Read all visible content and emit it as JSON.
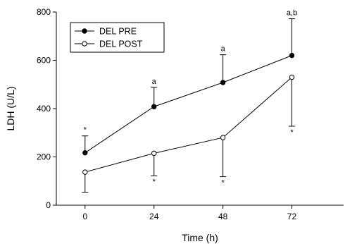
{
  "chart_data": {
    "type": "line",
    "xlabel": "Time (h)",
    "ylabel": "LDH (U/L)",
    "xlim": [
      -10,
      90
    ],
    "ylim": [
      0,
      800
    ],
    "x_ticks": [
      0,
      24,
      48,
      72
    ],
    "y_ticks": [
      0,
      200,
      400,
      600,
      800
    ],
    "grid": false,
    "legend_position": "top-left",
    "series": [
      {
        "name": "DEL PRE",
        "marker": "filled-circle",
        "x": [
          0,
          24,
          48,
          72
        ],
        "y": [
          217,
          408,
          508,
          620
        ],
        "error_dir": "up",
        "error": [
          70,
          80,
          115,
          152
        ],
        "annotations": [
          "*",
          "a",
          "a",
          "a,b"
        ]
      },
      {
        "name": "DEL POST",
        "marker": "open-circle",
        "x": [
          0,
          24,
          48,
          72
        ],
        "y": [
          137,
          215,
          280,
          530
        ],
        "error_dir": "down",
        "error": [
          83,
          93,
          162,
          203
        ],
        "annotations": [
          "",
          "*",
          "*",
          "*"
        ]
      }
    ],
    "colors": {
      "line": "#000000",
      "open_marker_fill": "#ffffff"
    }
  }
}
